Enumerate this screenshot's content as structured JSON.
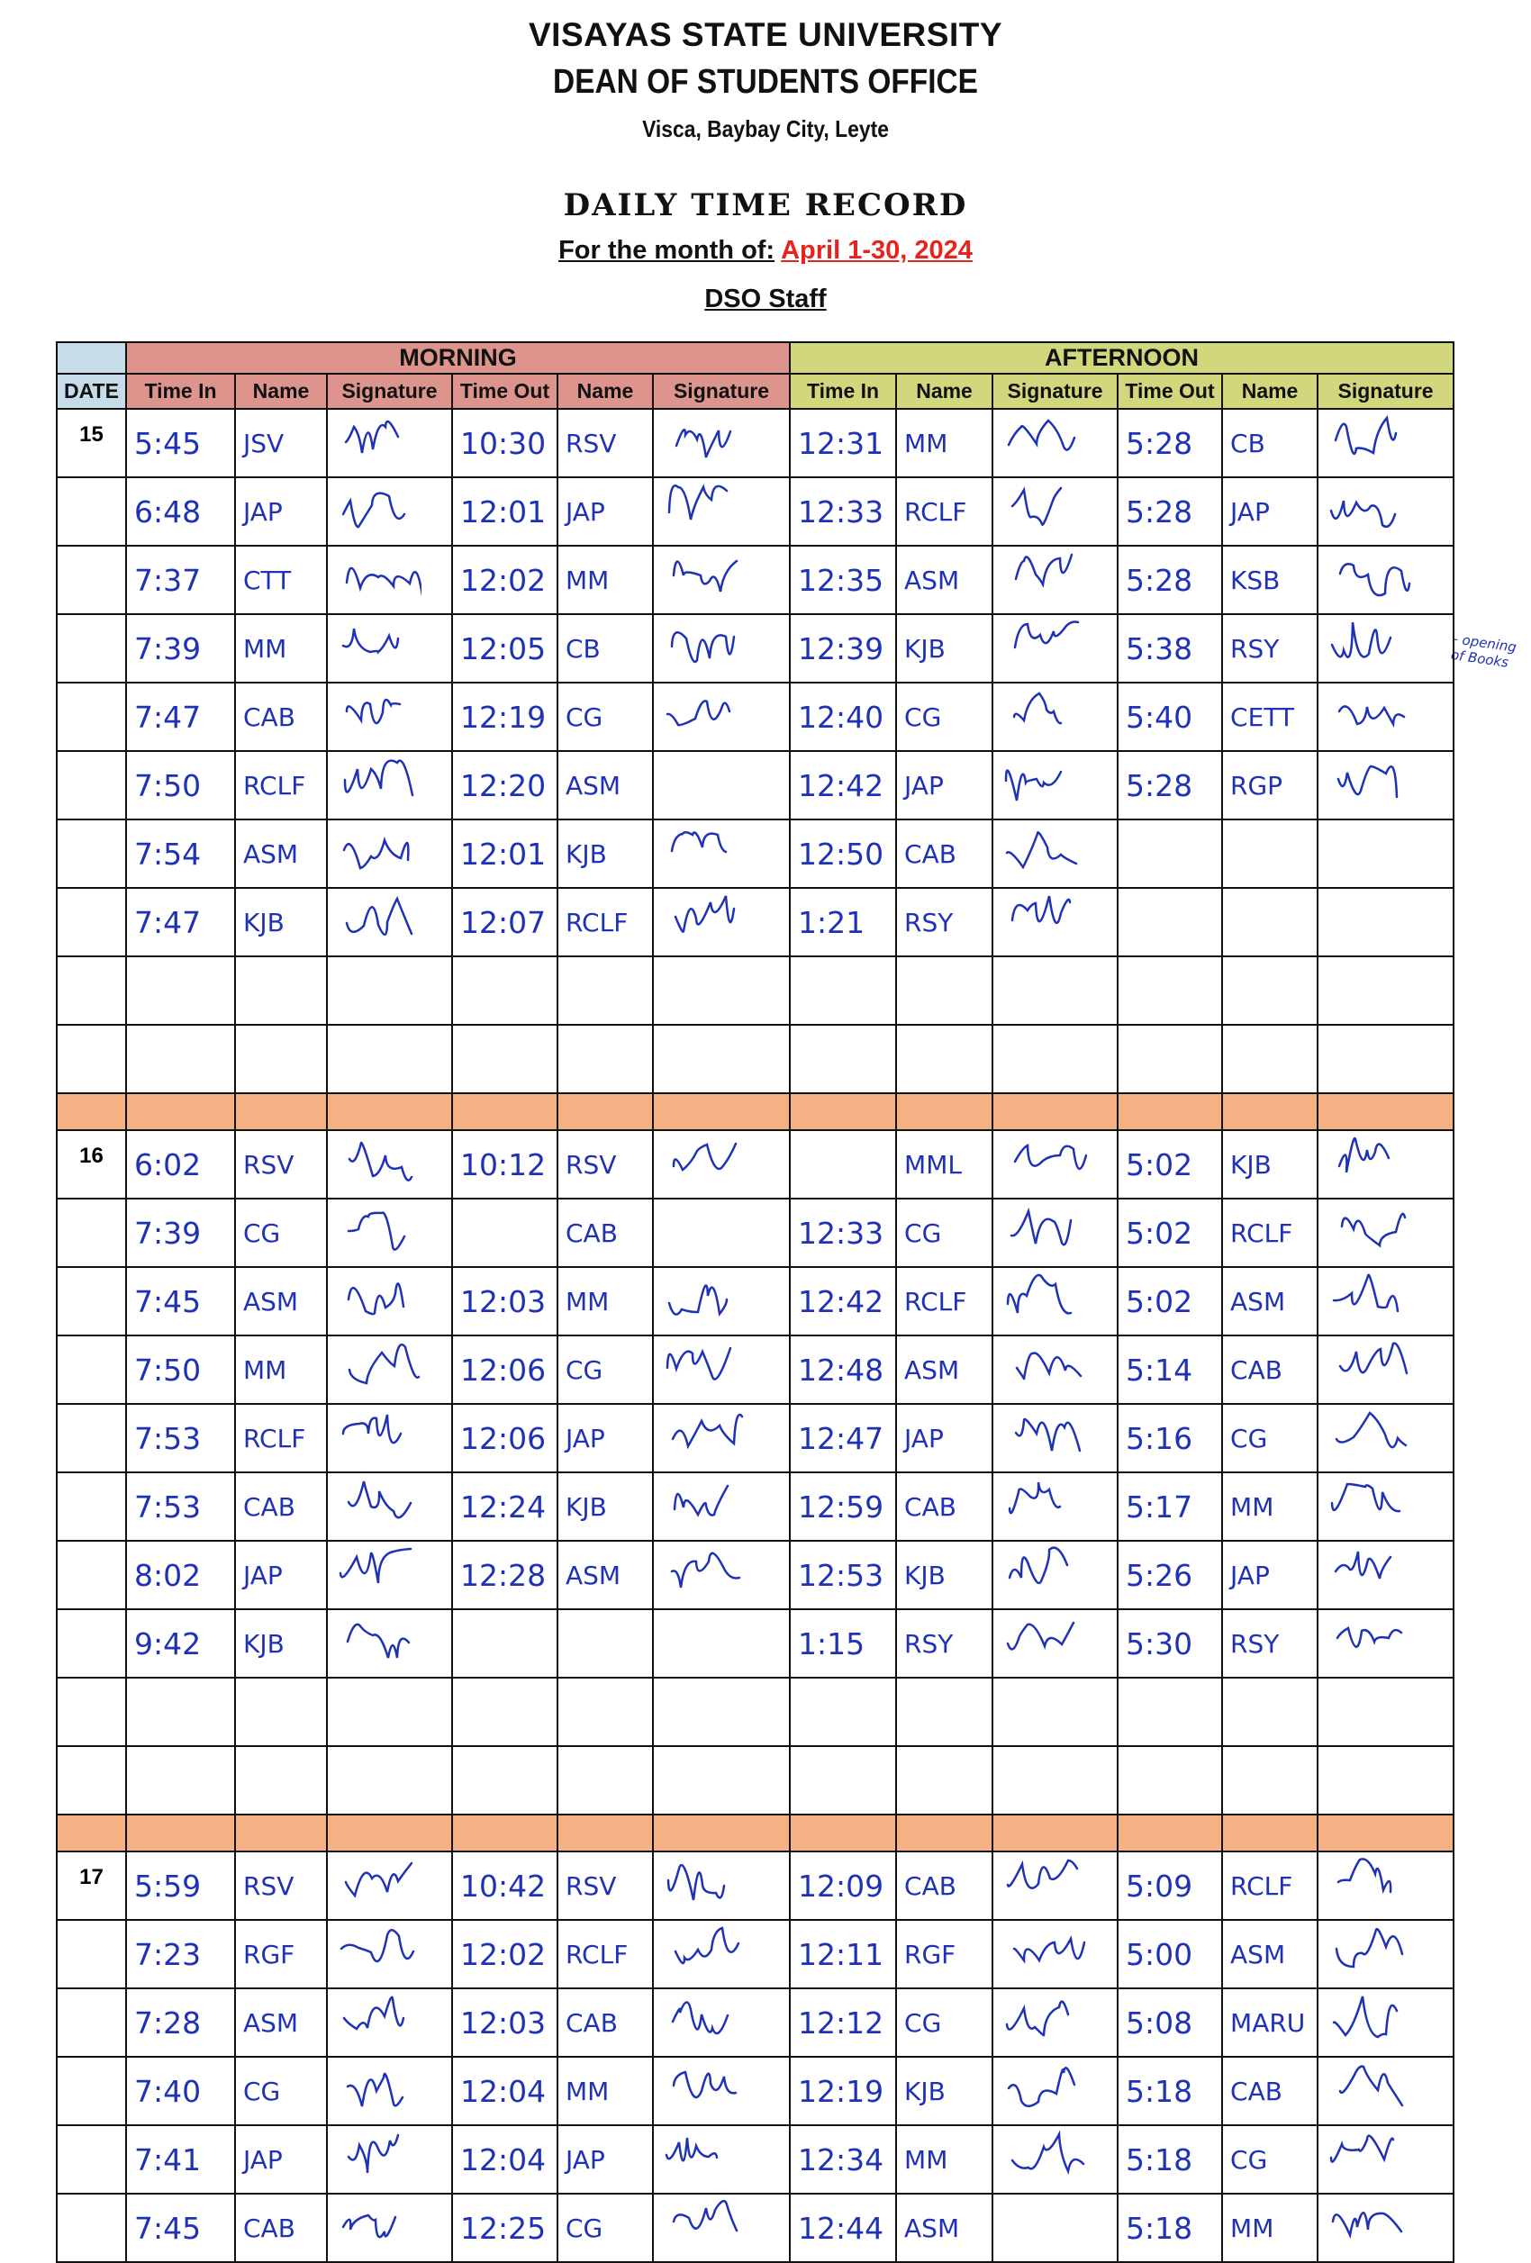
{
  "header": {
    "university": "VISAYAS STATE UNIVERSITY",
    "office": "DEAN OF STUDENTS OFFICE",
    "address": "Visca, Baybay City, Leyte",
    "form_title": "DAILY TIME RECORD",
    "month_label": "For the month of:",
    "month_value": "April 1-30, 2024",
    "group": "DSO Staff"
  },
  "colors": {
    "morning": "#dc948c",
    "afternoon": "#d2d67c",
    "date": "#c6dde9",
    "separator": "#f4b183",
    "month": "#e8231e",
    "ink": "#1f32b5"
  },
  "table": {
    "date_header": "DATE",
    "morning": "MORNING",
    "afternoon": "AFTERNOON",
    "columns": [
      "Time In",
      "Name",
      "Signature",
      "Time Out",
      "Name",
      "Signature",
      "Time In",
      "Name",
      "Signature",
      "Time Out",
      "Name",
      "Signature"
    ]
  },
  "margin_note": "- opening of Books",
  "dates": [
    {
      "date": "15",
      "rows": [
        [
          "5:45",
          "JSV",
          1,
          "10:30",
          "RSV",
          1,
          "12:31",
          "MM",
          1,
          "5:28",
          "CB",
          1
        ],
        [
          "6:48",
          "JAP",
          1,
          "12:01",
          "JAP",
          1,
          "12:33",
          "RCLF",
          1,
          "5:28",
          "JAP",
          1
        ],
        [
          "7:37",
          "CTT",
          1,
          "12:02",
          "MM",
          1,
          "12:35",
          "ASM",
          1,
          "5:28",
          "KSB",
          1
        ],
        [
          "7:39",
          "MM",
          1,
          "12:05",
          "CB",
          1,
          "12:39",
          "KJB",
          1,
          "5:38",
          "RSY",
          1
        ],
        [
          "7:47",
          "CAB",
          1,
          "12:19",
          "CG",
          1,
          "12:40",
          "CG",
          1,
          "5:40",
          "CETT",
          1
        ],
        [
          "7:50",
          "RCLF",
          1,
          "12:20",
          "ASM",
          0,
          "12:42",
          "JAP",
          1,
          "5:28",
          "RGP",
          1
        ],
        [
          "7:54",
          "ASM",
          1,
          "12:01",
          "KJB",
          1,
          "12:50",
          "CAB",
          1,
          "",
          "",
          0
        ],
        [
          "7:47",
          "KJB",
          1,
          "12:07",
          "RCLF",
          1,
          "1:21",
          "RSY",
          1,
          "",
          "",
          0
        ],
        [
          "",
          "",
          0,
          "",
          "",
          0,
          "",
          "",
          0,
          "",
          "",
          0
        ],
        [
          "",
          "",
          0,
          "",
          "",
          0,
          "",
          "",
          0,
          "",
          "",
          0
        ]
      ]
    },
    {
      "date": "16",
      "rows": [
        [
          "6:02",
          "RSV",
          1,
          "10:12",
          "RSV",
          1,
          "",
          "MML",
          1,
          "5:02",
          "KJB",
          1
        ],
        [
          "7:39",
          "CG",
          1,
          "",
          "CAB",
          0,
          "12:33",
          "CG",
          1,
          "5:02",
          "RCLF",
          1
        ],
        [
          "7:45",
          "ASM",
          1,
          "12:03",
          "MM",
          1,
          "12:42",
          "RCLF",
          1,
          "5:02",
          "ASM",
          1
        ],
        [
          "7:50",
          "MM",
          1,
          "12:06",
          "CG",
          1,
          "12:48",
          "ASM",
          1,
          "5:14",
          "CAB",
          1
        ],
        [
          "7:53",
          "RCLF",
          1,
          "12:06",
          "JAP",
          1,
          "12:47",
          "JAP",
          1,
          "5:16",
          "CG",
          1
        ],
        [
          "7:53",
          "CAB",
          1,
          "12:24",
          "KJB",
          1,
          "12:59",
          "CAB",
          1,
          "5:17",
          "MM",
          1
        ],
        [
          "8:02",
          "JAP",
          1,
          "12:28",
          "ASM",
          1,
          "12:53",
          "KJB",
          1,
          "5:26",
          "JAP",
          1
        ],
        [
          "9:42",
          "KJB",
          1,
          "",
          "",
          0,
          "1:15",
          "RSY",
          1,
          "5:30",
          "RSY",
          1
        ],
        [
          "",
          "",
          0,
          "",
          "",
          0,
          "",
          "",
          0,
          "",
          "",
          0
        ],
        [
          "",
          "",
          0,
          "",
          "",
          0,
          "",
          "",
          0,
          "",
          "",
          0
        ]
      ]
    },
    {
      "date": "17",
      "rows": [
        [
          "5:59",
          "RSV",
          1,
          "10:42",
          "RSV",
          1,
          "12:09",
          "CAB",
          1,
          "5:09",
          "RCLF",
          1
        ],
        [
          "7:23",
          "RGF",
          1,
          "12:02",
          "RCLF",
          1,
          "12:11",
          "RGF",
          1,
          "5:00",
          "ASM",
          1
        ],
        [
          "7:28",
          "ASM",
          1,
          "12:03",
          "CAB",
          1,
          "12:12",
          "CG",
          1,
          "5:08",
          "MARU",
          1
        ],
        [
          "7:40",
          "CG",
          1,
          "12:04",
          "MM",
          1,
          "12:19",
          "KJB",
          1,
          "5:18",
          "CAB",
          1
        ],
        [
          "7:41",
          "JAP",
          1,
          "12:04",
          "JAP",
          1,
          "12:34",
          "MM",
          1,
          "5:18",
          "CG",
          1
        ],
        [
          "7:45",
          "CAB",
          1,
          "12:25",
          "CG",
          1,
          "12:44",
          "ASM",
          0,
          "5:18",
          "MM",
          1
        ]
      ]
    }
  ]
}
